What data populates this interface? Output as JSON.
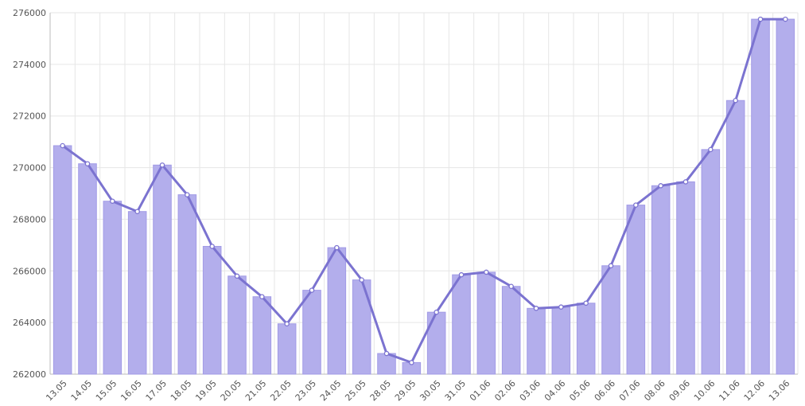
{
  "chart_data": {
    "type": "bar",
    "title": "",
    "xlabel": "",
    "ylabel": "",
    "categories": [
      "13.05",
      "14.05",
      "15.05",
      "16.05",
      "17.05",
      "18.05",
      "19.05",
      "20.05",
      "21.05",
      "22.05",
      "23.05",
      "24.05",
      "25.05",
      "28.05",
      "29.05",
      "30.05",
      "31.05",
      "01.06",
      "02.06",
      "03.06",
      "04.06",
      "05.06",
      "06.06",
      "07.06",
      "08.06",
      "09.06",
      "10.06",
      "11.06",
      "12.06",
      "13.06"
    ],
    "values": [
      270850,
      270150,
      268700,
      268300,
      270100,
      268950,
      266950,
      265800,
      265000,
      263950,
      265250,
      266900,
      265650,
      262800,
      262450,
      264400,
      265850,
      265950,
      265400,
      264550,
      264600,
      264750,
      266200,
      268550,
      269300,
      269450,
      270700,
      272600,
      275750,
      275750
    ],
    "line_values": [
      270850,
      270150,
      268700,
      268300,
      270100,
      268950,
      266950,
      265800,
      265000,
      263950,
      265250,
      266900,
      265650,
      262800,
      262450,
      264400,
      265850,
      265950,
      265400,
      264550,
      264600,
      264750,
      266200,
      268550,
      269300,
      269450,
      270700,
      272600,
      275750,
      275750
    ],
    "ylim": [
      262000,
      276000
    ],
    "yticks": [
      262000,
      264000,
      266000,
      268000,
      270000,
      272000,
      274000,
      276000
    ],
    "ytick_labels": [
      "262000",
      "264000",
      "266000",
      "268000",
      "270000",
      "272000",
      "274000",
      "276000"
    ],
    "grid": true,
    "colors": {
      "bar_fill": "#b3aeec",
      "bar_stroke": "#a29be6",
      "line": "#7b73d0",
      "grid": "#e6e6e6",
      "axis": "#bbbbbb"
    }
  }
}
